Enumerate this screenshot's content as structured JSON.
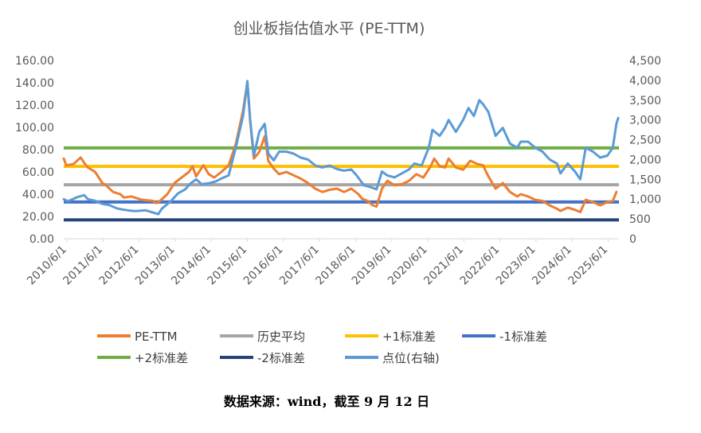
{
  "chart_data": {
    "type": "line",
    "title": "创业板指估值水平 (PE-TTM)",
    "x_ticks": [
      "2010/6/1",
      "2011/6/1",
      "2012/6/1",
      "2013/6/1",
      "2014/6/1",
      "2015/6/1",
      "2016/6/1",
      "2017/6/1",
      "2018/6/1",
      "2019/6/1",
      "2020/6/1",
      "2021/6/1",
      "2022/6/1",
      "2023/6/1",
      "2024/6/1",
      "2025/6/1"
    ],
    "y_left": {
      "min": 0,
      "max": 160,
      "step": 20,
      "tick_labels": [
        "0.00",
        "20.00",
        "40.00",
        "60.00",
        "80.00",
        "100.00",
        "120.00",
        "140.00",
        "160.00"
      ]
    },
    "y_right": {
      "min": 0,
      "max": 4500,
      "step": 500,
      "tick_labels": [
        "0",
        "500",
        "1,000",
        "1,500",
        "2,000",
        "2,500",
        "3,000",
        "3,500",
        "4,000",
        "4,500"
      ]
    },
    "grid": false,
    "legend_position": "bottom",
    "series": [
      {
        "name": "PE-TTM",
        "axis": "left",
        "color": "#ED7D31",
        "points": [
          [
            2010.33,
            72
          ],
          [
            2010.4,
            66
          ],
          [
            2010.6,
            67
          ],
          [
            2010.8,
            73
          ],
          [
            2010.9,
            68
          ],
          [
            2011.0,
            64
          ],
          [
            2011.2,
            60
          ],
          [
            2011.4,
            50
          ],
          [
            2011.5,
            48
          ],
          [
            2011.7,
            42
          ],
          [
            2011.9,
            40
          ],
          [
            2012.0,
            37
          ],
          [
            2012.2,
            38
          ],
          [
            2012.5,
            35
          ],
          [
            2012.8,
            34
          ],
          [
            2012.9,
            32
          ],
          [
            2013.0,
            34
          ],
          [
            2013.2,
            40
          ],
          [
            2013.4,
            50
          ],
          [
            2013.6,
            55
          ],
          [
            2013.8,
            60
          ],
          [
            2013.9,
            65
          ],
          [
            2014.0,
            56
          ],
          [
            2014.2,
            66
          ],
          [
            2014.35,
            58
          ],
          [
            2014.5,
            55
          ],
          [
            2014.7,
            60
          ],
          [
            2014.9,
            66
          ],
          [
            2015.1,
            85
          ],
          [
            2015.3,
            115
          ],
          [
            2015.42,
            140
          ],
          [
            2015.5,
            105
          ],
          [
            2015.6,
            72
          ],
          [
            2015.75,
            78
          ],
          [
            2015.9,
            92
          ],
          [
            2016.0,
            70
          ],
          [
            2016.15,
            63
          ],
          [
            2016.3,
            58
          ],
          [
            2016.5,
            60
          ],
          [
            2016.7,
            57
          ],
          [
            2016.9,
            54
          ],
          [
            2017.1,
            50
          ],
          [
            2017.3,
            45
          ],
          [
            2017.5,
            42
          ],
          [
            2017.7,
            44
          ],
          [
            2017.9,
            45
          ],
          [
            2018.1,
            42
          ],
          [
            2018.3,
            45
          ],
          [
            2018.5,
            40
          ],
          [
            2018.6,
            36
          ],
          [
            2018.75,
            34
          ],
          [
            2018.9,
            30
          ],
          [
            2019.0,
            29
          ],
          [
            2019.15,
            45
          ],
          [
            2019.3,
            52
          ],
          [
            2019.5,
            48
          ],
          [
            2019.7,
            49
          ],
          [
            2019.9,
            52
          ],
          [
            2020.1,
            58
          ],
          [
            2020.3,
            55
          ],
          [
            2020.5,
            65
          ],
          [
            2020.6,
            72
          ],
          [
            2020.75,
            65
          ],
          [
            2020.9,
            64
          ],
          [
            2021.0,
            72
          ],
          [
            2021.2,
            64
          ],
          [
            2021.4,
            62
          ],
          [
            2021.6,
            70
          ],
          [
            2021.8,
            67
          ],
          [
            2021.95,
            66
          ],
          [
            2022.1,
            56
          ],
          [
            2022.3,
            45
          ],
          [
            2022.5,
            50
          ],
          [
            2022.7,
            42
          ],
          [
            2022.9,
            38
          ],
          [
            2023.0,
            40
          ],
          [
            2023.2,
            38
          ],
          [
            2023.4,
            35
          ],
          [
            2023.6,
            34
          ],
          [
            2023.8,
            30
          ],
          [
            2024.0,
            27
          ],
          [
            2024.1,
            25
          ],
          [
            2024.3,
            28
          ],
          [
            2024.5,
            26
          ],
          [
            2024.65,
            24
          ],
          [
            2024.8,
            35
          ],
          [
            2025.0,
            33
          ],
          [
            2025.2,
            30
          ],
          [
            2025.4,
            33
          ],
          [
            2025.55,
            34
          ],
          [
            2025.65,
            42
          ]
        ]
      },
      {
        "name": "历史平均",
        "axis": "left",
        "color": "#A5A5A5",
        "constant": 48.5
      },
      {
        "name": "+1标准差",
        "axis": "left",
        "color": "#FFC000",
        "constant": 65
      },
      {
        "name": "-1标准差",
        "axis": "left",
        "color": "#4472C4",
        "constant": 33
      },
      {
        "name": "+2标准差",
        "axis": "left",
        "color": "#70AD47",
        "constant": 81.5
      },
      {
        "name": "-2标准差",
        "axis": "left",
        "color": "#264478",
        "constant": 17
      },
      {
        "name": "点位(右轴)",
        "axis": "right",
        "color": "#5B9BD5",
        "points": [
          [
            2010.33,
            1000
          ],
          [
            2010.45,
            950
          ],
          [
            2010.7,
            1050
          ],
          [
            2010.9,
            1100
          ],
          [
            2011.0,
            1000
          ],
          [
            2011.2,
            960
          ],
          [
            2011.4,
            880
          ],
          [
            2011.6,
            850
          ],
          [
            2011.8,
            770
          ],
          [
            2011.95,
            740
          ],
          [
            2012.1,
            720
          ],
          [
            2012.3,
            700
          ],
          [
            2012.6,
            720
          ],
          [
            2012.85,
            650
          ],
          [
            2012.95,
            620
          ],
          [
            2013.05,
            760
          ],
          [
            2013.3,
            950
          ],
          [
            2013.5,
            1150
          ],
          [
            2013.7,
            1250
          ],
          [
            2013.85,
            1400
          ],
          [
            2014.0,
            1500
          ],
          [
            2014.15,
            1380
          ],
          [
            2014.35,
            1400
          ],
          [
            2014.55,
            1450
          ],
          [
            2014.7,
            1520
          ],
          [
            2014.9,
            1600
          ],
          [
            2015.1,
            2300
          ],
          [
            2015.3,
            3100
          ],
          [
            2015.42,
            3980
          ],
          [
            2015.5,
            3000
          ],
          [
            2015.6,
            2100
          ],
          [
            2015.75,
            2700
          ],
          [
            2015.9,
            2900
          ],
          [
            2016.0,
            2150
          ],
          [
            2016.15,
            1980
          ],
          [
            2016.3,
            2200
          ],
          [
            2016.5,
            2200
          ],
          [
            2016.7,
            2150
          ],
          [
            2016.9,
            2050
          ],
          [
            2017.1,
            2000
          ],
          [
            2017.3,
            1850
          ],
          [
            2017.5,
            1800
          ],
          [
            2017.7,
            1850
          ],
          [
            2017.85,
            1780
          ],
          [
            2017.95,
            1750
          ],
          [
            2018.1,
            1720
          ],
          [
            2018.3,
            1750
          ],
          [
            2018.45,
            1600
          ],
          [
            2018.65,
            1350
          ],
          [
            2018.85,
            1300
          ],
          [
            2019.0,
            1250
          ],
          [
            2019.15,
            1700
          ],
          [
            2019.3,
            1600
          ],
          [
            2019.5,
            1550
          ],
          [
            2019.7,
            1650
          ],
          [
            2019.9,
            1750
          ],
          [
            2020.05,
            1900
          ],
          [
            2020.25,
            1850
          ],
          [
            2020.45,
            2300
          ],
          [
            2020.55,
            2750
          ],
          [
            2020.75,
            2600
          ],
          [
            2020.9,
            2800
          ],
          [
            2021.0,
            3000
          ],
          [
            2021.2,
            2700
          ],
          [
            2021.4,
            3000
          ],
          [
            2021.55,
            3300
          ],
          [
            2021.7,
            3100
          ],
          [
            2021.85,
            3500
          ],
          [
            2021.95,
            3400
          ],
          [
            2022.1,
            3200
          ],
          [
            2022.3,
            2600
          ],
          [
            2022.5,
            2800
          ],
          [
            2022.7,
            2400
          ],
          [
            2022.9,
            2300
          ],
          [
            2023.0,
            2450
          ],
          [
            2023.2,
            2450
          ],
          [
            2023.4,
            2300
          ],
          [
            2023.6,
            2200
          ],
          [
            2023.8,
            2000
          ],
          [
            2024.0,
            1900
          ],
          [
            2024.1,
            1650
          ],
          [
            2024.3,
            1900
          ],
          [
            2024.5,
            1700
          ],
          [
            2024.65,
            1500
          ],
          [
            2024.8,
            2300
          ],
          [
            2025.0,
            2200
          ],
          [
            2025.2,
            2050
          ],
          [
            2025.4,
            2100
          ],
          [
            2025.55,
            2300
          ],
          [
            2025.65,
            2900
          ],
          [
            2025.7,
            3050
          ]
        ]
      }
    ]
  },
  "source_text": "数据来源：wind，截至 9 月 12 日"
}
